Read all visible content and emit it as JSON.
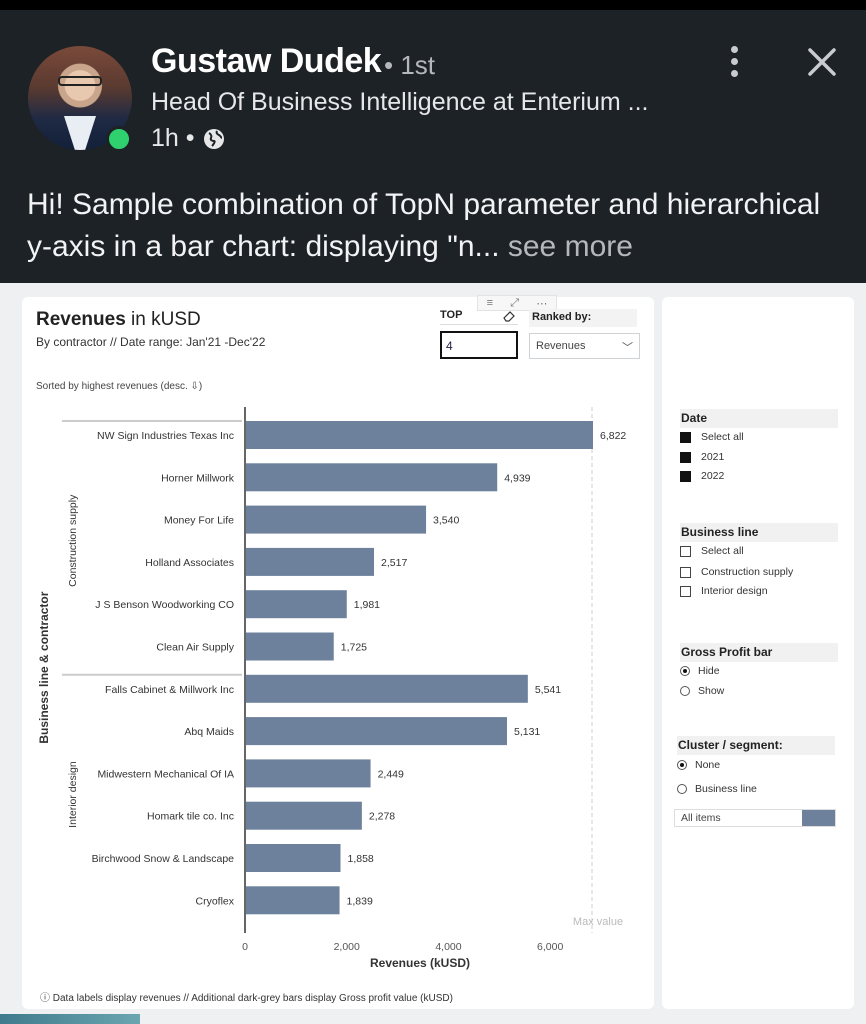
{
  "post": {
    "author_name": "Gustaw Dudek",
    "connection_degree": "• 1st",
    "headline": "Head Of Business Intelligence at Enterium ...",
    "time": "1h •",
    "text": "Hi! Sample combination of TopN parameter and hierarchical y-axis in a bar chart: displaying \"n...",
    "see_more": "see more",
    "online_color": "#2fd06e"
  },
  "icons": {
    "more": "more-vertical-icon",
    "close": "close-icon",
    "globe": "globe-icon"
  },
  "report": {
    "title_bold": "Revenues",
    "title_rest": " in kUSD",
    "subtitle": "By contractor // Date range: Jan'21 -Dec'22",
    "top_label": "TOP",
    "top_value": "4",
    "ranked_label": "Ranked by:",
    "ranked_value": "Revenues",
    "sorted_note": "Sorted by highest revenues (desc. ⇩)",
    "footnote": "ⓘ Data labels display revenues // Additional dark-grey bars display Gross profit value (kUSD)",
    "bar_color": "#6d819c"
  },
  "chart_data": {
    "type": "bar",
    "orientation": "horizontal",
    "xlabel": "Revenues (kUSD)",
    "ylabel": "Business line & contractor",
    "xlim": [
      0,
      6822
    ],
    "xticks": [
      "0",
      "2,000",
      "4,000",
      "6,000"
    ],
    "max_line_label": "Max value",
    "groups": [
      {
        "name": "Construction supply",
        "categories": [
          "NW Sign Industries Texas Inc",
          "Horner Millwork",
          "Money For Life",
          "Holland Associates",
          "J S Benson Woodworking CO",
          "Clean Air Supply"
        ],
        "values": [
          6822,
          4939,
          3540,
          2517,
          1981,
          1725
        ],
        "labels": [
          "6,822",
          "4,939",
          "3,540",
          "2,517",
          "1,981",
          "1,725"
        ]
      },
      {
        "name": "Interior design",
        "categories": [
          "Falls Cabinet & Millwork Inc",
          "Abq Maids",
          "Midwestern Mechanical Of IA",
          "Homark tile co. Inc",
          "Birchwood Snow & Landscape",
          "Cryoflex"
        ],
        "values": [
          5541,
          5131,
          2449,
          2278,
          1858,
          1839
        ],
        "labels": [
          "5,541",
          "5,131",
          "2,449",
          "2,278",
          "1,858",
          "1,839"
        ]
      }
    ]
  },
  "slicers": {
    "date": {
      "title": "Date",
      "items": [
        "Select all",
        "2021",
        "2022"
      ]
    },
    "business_line": {
      "title": "Business line",
      "items": [
        "Select all",
        "Construction supply",
        "Interior design"
      ]
    },
    "gross_profit": {
      "title": "Gross Profit bar",
      "items": [
        "Hide",
        "Show"
      ],
      "selected": "Hide"
    },
    "cluster": {
      "title": "Cluster / segment:",
      "items": [
        "None",
        "Business line"
      ],
      "selected": "None"
    },
    "all_items": "All items"
  }
}
